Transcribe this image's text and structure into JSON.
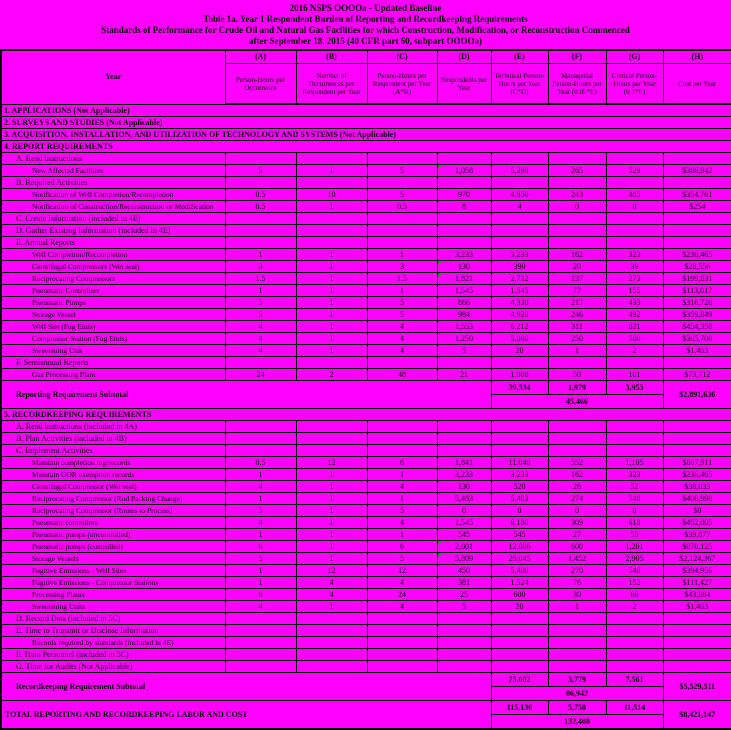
{
  "colors": {
    "background": "#ff00ff",
    "grid": "#000000",
    "text": "#000000",
    "comment_marker": "#00a000"
  },
  "title_lines": [
    "2016 NSPS OOOOa - Updated Baseline",
    "Table 1a.  Year 1 Respondent Burden of Reporting and Recordkeeping Requirements",
    "Standards of Performance for Crude Oil and Natural Gas Facilities for which Construction, Modification, or Reconstruction Commenced",
    "after September 18, 2015 (40 CFR part 60, subpart OOOOa)"
  ],
  "header": {
    "year_label": "Year",
    "letters": [
      "(A)",
      "(B)",
      "(C)",
      "(D)",
      "(E)",
      "(F)",
      "(G)",
      "(H)"
    ],
    "descriptions": [
      "Person-Hours per Occurrence",
      "Number of Occurrences per Respondent per Year",
      "Person-Hours per Respondent per Year (A*B)",
      "Respondents per Year",
      "Technical Person-Hours per Year (C*D)",
      "Managerial Person-Hours per Year (0.05*E)",
      "Clerical Person-Hours per Year (0.1*E)",
      "Cost per Year"
    ]
  },
  "rows": [
    {
      "type": "section",
      "label": "1. APPLICATIONS (Not Applicable)"
    },
    {
      "type": "section",
      "label": "2. SURVEYS AND STUDIES (Not Applicable)"
    },
    {
      "type": "section",
      "label": "3. ACQUISITION, INSTALLATION, AND UTILIZATION OF TECHNOLOGY AND SYSTEMS (Not Applicable)"
    },
    {
      "type": "section",
      "label": "4. REPORT REQUIREMENTS"
    },
    {
      "type": "label",
      "label": "A. Read Instructions",
      "indent": 1
    },
    {
      "type": "data",
      "label": "New Affected Facilities",
      "values": [
        "5",
        "1",
        "5",
        "1,058",
        "5,290",
        "265",
        "529",
        "$386,942"
      ],
      "comment": true
    },
    {
      "type": "label",
      "label": "B. Required Activities",
      "indent": 1
    },
    {
      "type": "data",
      "label": "Notification of Well Completion/Recompletion",
      "values": [
        "0.5",
        "10",
        "5",
        "970",
        "4,850",
        "243",
        "485",
        "$354,761"
      ]
    },
    {
      "type": "data",
      "label": "Notification of Construction/Reconstruction or Modification",
      "values": [
        "0.5",
        "1",
        "0.5",
        "8",
        "4",
        "0",
        "0",
        "$254"
      ]
    },
    {
      "type": "label",
      "label": "C. Create Information (included in 4E)",
      "indent": 1
    },
    {
      "type": "label",
      "label": "D. Gather Existing Information (included in 4E)",
      "indent": 1
    },
    {
      "type": "label",
      "label": "E. Annual Reports",
      "indent": 1
    },
    {
      "type": "data",
      "label": "Well Completion/Recompletion",
      "values": [
        "1",
        "1",
        "1",
        "3,233",
        "3,233",
        "162",
        "323",
        "$236,465"
      ]
    },
    {
      "type": "data",
      "label": "Centrifugal Compressors (Wet seal)",
      "values": [
        "3",
        "1",
        "3",
        "130",
        "390",
        "20",
        "39",
        "$28,556"
      ],
      "comment": true
    },
    {
      "type": "data",
      "label": "Reciprocating Compressors",
      "values": [
        "1.5",
        "1",
        "1.5",
        "1,821",
        "2,732",
        "137",
        "273",
        "$199,831"
      ],
      "comment": true
    },
    {
      "type": "data",
      "label": "Pneumatic Controllers",
      "values": [
        "1",
        "1",
        "1",
        "1,545",
        "1,545",
        "77",
        "155",
        "$113,017"
      ]
    },
    {
      "type": "data",
      "label": "Pneumatic Pumps",
      "values": [
        "5",
        "1",
        "5",
        "866",
        "4,330",
        "217",
        "433",
        "$316,728"
      ]
    },
    {
      "type": "data",
      "label": "Storage Vessel",
      "values": [
        "5",
        "1",
        "5",
        "984",
        "4,920",
        "246",
        "492",
        "$359,849"
      ]
    },
    {
      "type": "data",
      "label": "Well Site (Fug Emis)",
      "values": [
        "4",
        "1",
        "4",
        "1,553",
        "6,212",
        "311",
        "621",
        "$454,358"
      ]
    },
    {
      "type": "data",
      "label": "Compressor Station (Fug Emis)",
      "values": [
        "4",
        "1",
        "4",
        "1,250",
        "5,000",
        "250",
        "500",
        "$365,700"
      ]
    },
    {
      "type": "data",
      "label": "Sweetening Unit",
      "values": [
        "4",
        "1",
        "4",
        "5",
        "20",
        "1",
        "2",
        "$1,463"
      ]
    },
    {
      "type": "label",
      "label": "F. Semiannual Reports",
      "indent": 1
    },
    {
      "type": "data",
      "label": "Gas Processing Plant",
      "values": [
        "24",
        "2",
        "48",
        "21",
        "1,008",
        "50",
        "101",
        "$73,712"
      ]
    },
    {
      "type": "subtotal",
      "style": "subtotal",
      "label": "Reporting Requirement Subtotal",
      "e": "39,534",
      "f": "1,979",
      "g": "3,953",
      "total_hours": "45,466",
      "cost": "$2,891,636"
    },
    {
      "type": "section",
      "label": "5. RECORDKEEPING REQUIREMENTS"
    },
    {
      "type": "label",
      "label": "A. Read Instructions (included in 4A)",
      "indent": 1
    },
    {
      "type": "label",
      "label": "B. Plan Activities (included in 4B)",
      "indent": 1
    },
    {
      "type": "label",
      "label": "C. Implement Activities",
      "indent": 1
    },
    {
      "type": "data",
      "label": "Maintain completion log/records",
      "values": [
        "0.5",
        "12",
        "6",
        "1,841",
        "11,046",
        "552",
        "1,105",
        "$807,911"
      ]
    },
    {
      "type": "data",
      "label": "Maintain GOR exemption records",
      "values": [
        "1",
        "1",
        "1",
        "3,233",
        "3,233",
        "162",
        "323",
        "$236,465"
      ]
    },
    {
      "type": "data",
      "label": "Centrifugal Compressor (Wet seal)",
      "values": [
        "4",
        "1",
        "4",
        "130",
        "520",
        "26",
        "52",
        "$38,033"
      ]
    },
    {
      "type": "data",
      "label": "Reciprocating Compressor (Rod Packing Change)",
      "values": [
        "1",
        "1",
        "1",
        "5,483",
        "5,483",
        "274",
        "548",
        "$400,998"
      ]
    },
    {
      "type": "data",
      "label": "Reciprocating Compressor (Routes to Process)",
      "values": [
        "5",
        "1",
        "5",
        "0",
        "0",
        "0",
        "0",
        "$0"
      ]
    },
    {
      "type": "data",
      "label": "Pneumatic controllers",
      "values": [
        "4",
        "1",
        "4",
        "1,545",
        "6,180",
        "309",
        "618",
        "$452,005"
      ]
    },
    {
      "type": "data",
      "label": "Pneumatic pumps (uncontrolled)",
      "values": [
        "1",
        "1",
        "1",
        "545",
        "545",
        "27",
        "55",
        "$39,877"
      ]
    },
    {
      "type": "data",
      "label": "Pneumatic pumps (controlled)",
      "values": [
        "6",
        "1",
        "6",
        "2,001",
        "12,006",
        "600",
        "1,201",
        "$878,125"
      ],
      "comment": true
    },
    {
      "type": "data",
      "label": "Storage Vessels",
      "values": [
        "5",
        "1",
        "5",
        "5,809",
        "29,045",
        "1,452",
        "2,905",
        "$2,124,367"
      ],
      "comment": true
    },
    {
      "type": "data",
      "label": "Fugitive Emissions - Well Sites",
      "values": [
        "1",
        "12",
        "12",
        "450",
        "5,400",
        "270",
        "540",
        "$394,956"
      ]
    },
    {
      "type": "data",
      "label": "Fugitive Emissions - Compressor Stations",
      "values": [
        "1",
        "4",
        "4",
        "381",
        "1,524",
        "76",
        "152",
        "$111,427"
      ]
    },
    {
      "type": "data",
      "label": "Processing Plants",
      "values": [
        "6",
        "4",
        "24",
        "25",
        "600",
        "30",
        "60",
        "$43,884"
      ]
    },
    {
      "type": "data",
      "label": "Sweetening Units",
      "values": [
        "4",
        "1",
        "4",
        "5",
        "20",
        "1",
        "2",
        "$1,463"
      ]
    },
    {
      "type": "label",
      "label": "D. Record Data (included in 5C)",
      "indent": 1
    },
    {
      "type": "label",
      "label": "E. Time to Transmit or Disclose Information",
      "indent": 1
    },
    {
      "type": "label",
      "label": "Records required by standards (included in 4E)",
      "indent": 2
    },
    {
      "type": "label",
      "label": "F. Train Personnel (included in 5C)",
      "indent": 1
    },
    {
      "type": "label",
      "label": "G. Time for Audits (Not Applicable)",
      "indent": 1
    },
    {
      "type": "subtotal",
      "style": "subtotal",
      "label": "Recordkeeping Requirement Subtotal",
      "e": "75,602",
      "f": "3,779",
      "g": "7,561",
      "total_hours": "86,942",
      "cost": "$5,529,511"
    },
    {
      "type": "subtotal",
      "style": "total",
      "label": "TOTAL REPORTING AND RECORDKEEPING LABOR AND COST",
      "e": "115,136",
      "f": "5,758",
      "g": "11,514",
      "total_hours": "132,408",
      "cost": "$8,421,147"
    }
  ]
}
